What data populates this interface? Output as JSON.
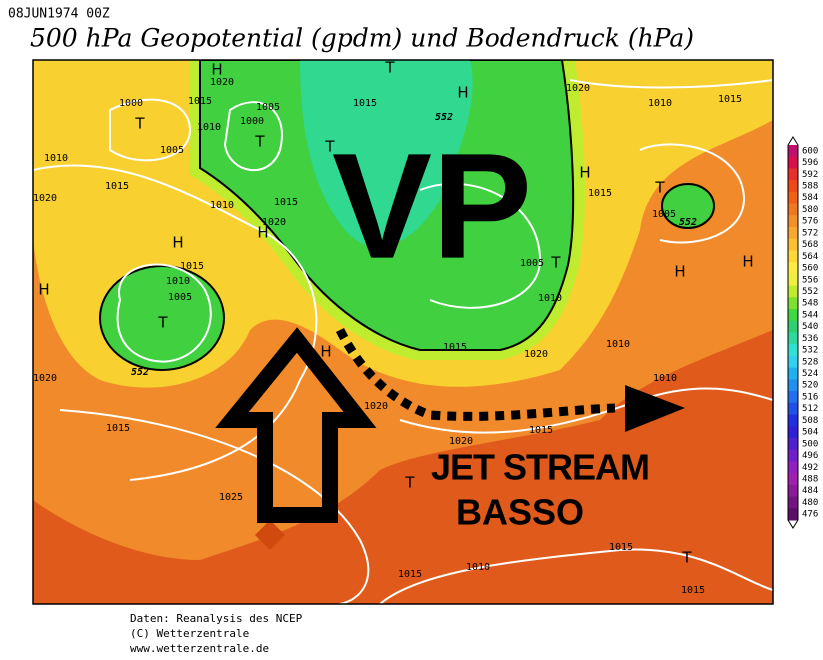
{
  "header": {
    "date": "08JUN1974 00Z",
    "title": "500 hPa Geopotential (gpdm) und Bodendruck (hPa)"
  },
  "annotations": {
    "system": "VP",
    "jet_line1": "JET STREAM",
    "jet_line2": "BASSO"
  },
  "map_labels": [
    "H",
    "H",
    "H",
    "H",
    "H",
    "H",
    "H",
    "H",
    "H",
    "T",
    "T",
    "T",
    "T",
    "T",
    "T",
    "T",
    "T",
    "T",
    "1020",
    "1015",
    "1005",
    "1010",
    "1000",
    "1000",
    "1005",
    "1010",
    "1015",
    "1020",
    "1010",
    "1015",
    "1020",
    "1015",
    "1010",
    "1005",
    "1020",
    "1015",
    "1025",
    "1020",
    "1010",
    "1015",
    "1015",
    "1015",
    "1005",
    "1005",
    "1010",
    "1015",
    "1020",
    "1010",
    "1010",
    "1020",
    "1020",
    "1015",
    "1015",
    "1015",
    "1010",
    "1015",
    "552",
    "552",
    "552"
  ],
  "legend": {
    "levels": [
      600,
      596,
      592,
      588,
      584,
      580,
      576,
      572,
      568,
      564,
      560,
      556,
      552,
      548,
      544,
      540,
      536,
      532,
      528,
      524,
      520,
      516,
      512,
      508,
      504,
      500,
      496,
      492,
      488,
      484,
      480,
      476
    ],
    "colors": [
      "#c0106e",
      "#d8104a",
      "#e8302a",
      "#f04818",
      "#f06018",
      "#f07820",
      "#f49028",
      "#f8a830",
      "#fcc030",
      "#fcd838",
      "#fcec40",
      "#f0f040",
      "#c0ec30",
      "#80e030",
      "#40d840",
      "#30d070",
      "#30d8a0",
      "#30e0d0",
      "#30d0f0",
      "#20b0f0",
      "#2090f0",
      "#2070f0",
      "#2050e8",
      "#2030e0",
      "#3020d8",
      "#5020d0",
      "#7020c8",
      "#9020c0",
      "#a020b0",
      "#8a1a98",
      "#741480",
      "#5a0e68"
    ]
  },
  "credits": [
    "Daten: Reanalysis des NCEP",
    "(C) Wetterzentrale",
    "www.wetterzentrale.de"
  ]
}
